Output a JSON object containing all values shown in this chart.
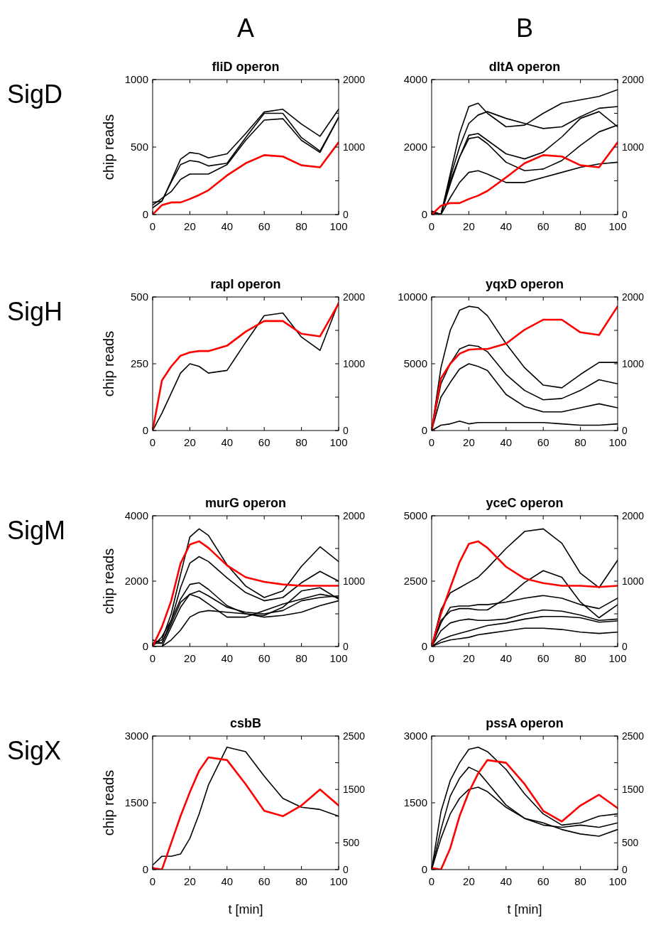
{
  "chart_data": [
    {
      "type": "line",
      "title": "fliD operon",
      "ylabel": "chip reads",
      "annotations": [
        "SigD",
        "A"
      ],
      "x": [
        0,
        5,
        10,
        15,
        20,
        25,
        30,
        40,
        50,
        60,
        70,
        80,
        90,
        100
      ],
      "xlim": [
        0,
        100
      ],
      "xticks": [
        0,
        20,
        40,
        60,
        80,
        100
      ],
      "ylim": [
        0,
        1000
      ],
      "yticks": [
        0,
        500,
        1000
      ],
      "y2lim": [
        0,
        2000
      ],
      "y2ticks": [
        0,
        {
          "value": 500,
          "label": null
        },
        1000,
        {
          "value": 1500,
          "label": null
        },
        2000
      ],
      "series": [
        {
          "color": "#000000",
          "values": [
            90,
            100,
            250,
            410,
            460,
            450,
            420,
            450,
            600,
            760,
            780,
            670,
            580,
            780
          ]
        },
        {
          "color": "#000000",
          "values": [
            50,
            100,
            240,
            370,
            400,
            390,
            360,
            380,
            570,
            750,
            750,
            570,
            470,
            720
          ]
        },
        {
          "color": "#000000",
          "values": [
            70,
            120,
            170,
            260,
            300,
            300,
            300,
            370,
            550,
            700,
            710,
            550,
            460,
            720
          ]
        },
        {
          "color": "#ff0000",
          "axis": "y2",
          "values": [
            0,
            140,
            180,
            180,
            230,
            290,
            360,
            580,
            760,
            880,
            860,
            730,
            700,
            1070
          ]
        }
      ]
    },
    {
      "type": "line",
      "title": "dltA operon",
      "annotations": [
        "B"
      ],
      "x": [
        0,
        5,
        10,
        15,
        20,
        25,
        30,
        40,
        50,
        60,
        70,
        80,
        90,
        100
      ],
      "xlim": [
        0,
        100
      ],
      "xticks": [
        0,
        20,
        40,
        60,
        80,
        100
      ],
      "ylim": [
        0,
        4000
      ],
      "yticks": [
        0,
        2000,
        4000
      ],
      "y2lim": [
        0,
        2000
      ],
      "y2ticks": [
        0,
        {
          "value": 500,
          "label": null
        },
        1000,
        {
          "value": 1500,
          "label": null
        },
        2000
      ],
      "series": [
        {
          "color": "#000000",
          "values": [
            100,
            0,
            1200,
            2400,
            3200,
            3300,
            3000,
            2600,
            2650,
            3000,
            3300,
            3400,
            3500,
            3700
          ]
        },
        {
          "color": "#000000",
          "values": [
            50,
            0,
            1100,
            2000,
            2700,
            2950,
            3050,
            2850,
            2700,
            2550,
            2600,
            2900,
            3150,
            3200
          ]
        },
        {
          "color": "#000000",
          "values": [
            100,
            0,
            1000,
            1700,
            2350,
            2400,
            2200,
            1800,
            1650,
            1850,
            2300,
            2850,
            3050,
            2600
          ]
        },
        {
          "color": "#000000",
          "values": [
            100,
            0,
            900,
            1700,
            2250,
            2300,
            2100,
            1550,
            1300,
            1350,
            1600,
            2050,
            2450,
            2650
          ]
        },
        {
          "color": "#000000",
          "values": [
            100,
            0,
            500,
            950,
            1250,
            1300,
            1200,
            950,
            950,
            1100,
            1250,
            1400,
            1500,
            1550
          ]
        },
        {
          "color": "#ff0000",
          "axis": "y2",
          "values": [
            0,
            130,
            170,
            170,
            230,
            280,
            350,
            550,
            760,
            880,
            860,
            730,
            700,
            1070
          ]
        }
      ]
    },
    {
      "type": "line",
      "title": "rapI operon",
      "ylabel": "chip reads",
      "annotations": [
        "SigH"
      ],
      "x": [
        0,
        5,
        10,
        15,
        20,
        25,
        30,
        40,
        50,
        60,
        70,
        80,
        90,
        100
      ],
      "xlim": [
        0,
        100
      ],
      "xticks": [
        0,
        20,
        40,
        60,
        80,
        100
      ],
      "ylim": [
        0,
        500
      ],
      "yticks": [
        0,
        250,
        500
      ],
      "y2lim": [
        0,
        2000
      ],
      "y2ticks": [
        0,
        {
          "value": 500,
          "label": null
        },
        1000,
        {
          "value": 1500,
          "label": null
        },
        2000
      ],
      "series": [
        {
          "color": "#000000",
          "values": [
            0,
            65,
            140,
            215,
            250,
            240,
            215,
            225,
            330,
            430,
            440,
            350,
            300,
            480
          ]
        },
        {
          "color": "#ff0000",
          "axis": "y2",
          "values": [
            0,
            750,
            960,
            1120,
            1170,
            1190,
            1190,
            1270,
            1480,
            1640,
            1640,
            1450,
            1410,
            1900
          ]
        }
      ]
    },
    {
      "type": "line",
      "title": "yqxD operon",
      "x": [
        0,
        5,
        10,
        15,
        20,
        25,
        30,
        40,
        50,
        60,
        70,
        80,
        90,
        100
      ],
      "xlim": [
        0,
        100
      ],
      "xticks": [
        0,
        20,
        40,
        60,
        80,
        100
      ],
      "ylim": [
        0,
        10000
      ],
      "yticks": [
        0,
        5000,
        10000
      ],
      "y2lim": [
        0,
        2000
      ],
      "y2ticks": [
        0,
        {
          "value": 500,
          "label": null
        },
        1000,
        {
          "value": 1500,
          "label": null
        },
        2000
      ],
      "series": [
        {
          "color": "#000000",
          "values": [
            0,
            4700,
            7500,
            9000,
            9300,
            9200,
            8600,
            6500,
            4700,
            3400,
            3200,
            4200,
            5100,
            5100
          ]
        },
        {
          "color": "#000000",
          "values": [
            0,
            3500,
            5000,
            6100,
            6400,
            6300,
            5900,
            4200,
            3000,
            2300,
            2400,
            3000,
            3800,
            3500
          ]
        },
        {
          "color": "#000000",
          "values": [
            0,
            2500,
            3600,
            4600,
            5000,
            4800,
            4500,
            2700,
            1800,
            1400,
            1400,
            1700,
            2000,
            1700
          ]
        },
        {
          "color": "#000000",
          "values": [
            0,
            400,
            500,
            700,
            500,
            600,
            600,
            600,
            600,
            600,
            500,
            400,
            400,
            500
          ]
        },
        {
          "color": "#ff0000",
          "axis": "y2",
          "values": [
            0,
            780,
            1000,
            1150,
            1210,
            1220,
            1220,
            1300,
            1510,
            1660,
            1660,
            1470,
            1430,
            1860
          ]
        }
      ]
    },
    {
      "type": "line",
      "title": "murG operon",
      "ylabel": "chip reads",
      "annotations": [
        "SigM"
      ],
      "x": [
        0,
        5,
        10,
        15,
        20,
        25,
        30,
        40,
        50,
        60,
        70,
        80,
        90,
        100
      ],
      "xlim": [
        0,
        100
      ],
      "xticks": [
        0,
        20,
        40,
        60,
        80,
        100
      ],
      "ylim": [
        0,
        4000
      ],
      "yticks": [
        0,
        2000,
        4000
      ],
      "y2lim": [
        0,
        2000
      ],
      "y2ticks": [
        0,
        {
          "value": 500,
          "label": null
        },
        1000,
        {
          "value": 1500,
          "label": null
        },
        2000
      ],
      "series": [
        {
          "color": "#000000",
          "values": [
            100,
            200,
            1000,
            2200,
            3350,
            3600,
            3400,
            2500,
            1850,
            1500,
            1700,
            2450,
            3050,
            2600
          ]
        },
        {
          "color": "#000000",
          "values": [
            100,
            100,
            800,
            1800,
            2550,
            2750,
            2600,
            2100,
            1650,
            1400,
            1500,
            1950,
            2300,
            2000
          ]
        },
        {
          "color": "#000000",
          "values": [
            0,
            300,
            800,
            1450,
            1900,
            1950,
            1750,
            1250,
            1000,
            950,
            1200,
            1700,
            1800,
            1450
          ]
        },
        {
          "color": "#000000",
          "values": [
            200,
            100,
            700,
            1350,
            1600,
            1700,
            1550,
            1200,
            1050,
            1000,
            1100,
            1400,
            1500,
            1550
          ]
        },
        {
          "color": "#000000",
          "values": [
            0,
            0,
            600,
            1200,
            1600,
            1500,
            1300,
            900,
            900,
            1100,
            1300,
            1450,
            1600,
            1500
          ]
        },
        {
          "color": "#000000",
          "values": [
            0,
            0,
            200,
            500,
            900,
            1050,
            1100,
            1050,
            1000,
            900,
            950,
            1050,
            1250,
            1400
          ]
        },
        {
          "color": "#ff0000",
          "axis": "y2",
          "values": [
            0,
            300,
            700,
            1270,
            1560,
            1610,
            1510,
            1240,
            1060,
            990,
            950,
            930,
            930,
            930
          ]
        }
      ]
    },
    {
      "type": "line",
      "title": "yceC operon",
      "x": [
        0,
        5,
        10,
        15,
        20,
        25,
        30,
        40,
        50,
        60,
        70,
        80,
        90,
        100
      ],
      "xlim": [
        0,
        100
      ],
      "xticks": [
        0,
        20,
        40,
        60,
        80,
        100
      ],
      "ylim": [
        0,
        5000
      ],
      "yticks": [
        0,
        2500,
        5000
      ],
      "y2lim": [
        0,
        2000
      ],
      "y2ticks": [
        0,
        {
          "value": 500,
          "label": null
        },
        1000,
        {
          "value": 1500,
          "label": null
        },
        2000
      ],
      "series": [
        {
          "color": "#000000",
          "values": [
            0,
            1400,
            2050,
            2250,
            2450,
            2650,
            3000,
            3750,
            4400,
            4500,
            3950,
            2800,
            2250,
            3300
          ]
        },
        {
          "color": "#000000",
          "values": [
            0,
            1000,
            1350,
            1450,
            1450,
            1400,
            1400,
            1850,
            2450,
            2900,
            2650,
            1700,
            1100,
            1600
          ]
        },
        {
          "color": "#000000",
          "values": [
            0,
            900,
            1500,
            1550,
            1550,
            1600,
            1600,
            1700,
            1850,
            1950,
            1850,
            1600,
            1450,
            1850
          ]
        },
        {
          "color": "#000000",
          "values": [
            0,
            600,
            900,
            1000,
            1050,
            1000,
            1000,
            1050,
            1250,
            1400,
            1350,
            1200,
            1000,
            1050
          ]
        },
        {
          "color": "#000000",
          "values": [
            0,
            250,
            400,
            500,
            600,
            700,
            800,
            900,
            1050,
            1150,
            1150,
            1100,
            930,
            980
          ]
        },
        {
          "color": "#000000",
          "values": [
            0,
            150,
            250,
            300,
            350,
            450,
            500,
            600,
            700,
            700,
            650,
            550,
            500,
            550
          ]
        },
        {
          "color": "#ff0000",
          "axis": "y2",
          "values": [
            0,
            500,
            900,
            1290,
            1570,
            1610,
            1510,
            1220,
            1040,
            970,
            930,
            930,
            910,
            930
          ]
        }
      ]
    },
    {
      "type": "line",
      "title": "csbB",
      "ylabel": "chip reads",
      "xlabel": "t [min]",
      "annotations": [
        "SigX"
      ],
      "x": [
        0,
        5,
        10,
        15,
        20,
        25,
        30,
        40,
        50,
        60,
        70,
        80,
        90,
        100
      ],
      "xlim": [
        0,
        100
      ],
      "xticks": [
        0,
        20,
        40,
        60,
        80,
        100
      ],
      "ylim": [
        0,
        3000
      ],
      "yticks": [
        0,
        1500,
        3000
      ],
      "y2lim": [
        0,
        2500
      ],
      "y2ticks": [
        0,
        500,
        {
          "value": 1000,
          "label": null
        },
        1500,
        {
          "value": 2000,
          "label": null
        },
        2500
      ],
      "series": [
        {
          "color": "#000000",
          "values": [
            100,
            300,
            300,
            350,
            700,
            1250,
            1900,
            2750,
            2650,
            2100,
            1600,
            1400,
            1350,
            1200
          ]
        },
        {
          "color": "#ff0000",
          "axis": "y2",
          "values": [
            30,
            0,
            500,
            1000,
            1450,
            1850,
            2100,
            2050,
            1600,
            1100,
            1000,
            1200,
            1500,
            1200
          ]
        }
      ]
    },
    {
      "type": "line",
      "title": "pssA operon",
      "xlabel": "t [min]",
      "x": [
        0,
        5,
        10,
        15,
        20,
        25,
        30,
        40,
        50,
        60,
        70,
        80,
        90,
        100
      ],
      "xlim": [
        0,
        100
      ],
      "xticks": [
        0,
        20,
        40,
        60,
        80,
        100
      ],
      "ylim": [
        0,
        3000
      ],
      "yticks": [
        0,
        1500,
        3000
      ],
      "y2lim": [
        0,
        2500
      ],
      "y2ticks": [
        0,
        500,
        {
          "value": 1000,
          "label": null
        },
        1500,
        {
          "value": 2000,
          "label": null
        },
        2500
      ],
      "series": [
        {
          "color": "#000000",
          "values": [
            0,
            1300,
            2000,
            2400,
            2700,
            2750,
            2650,
            2250,
            1700,
            1250,
            1000,
            1050,
            1200,
            1250
          ]
        },
        {
          "color": "#000000",
          "values": [
            0,
            900,
            1650,
            2050,
            2300,
            2200,
            1950,
            1450,
            1150,
            1000,
            950,
            1000,
            950,
            1050
          ]
        },
        {
          "color": "#000000",
          "values": [
            0,
            700,
            1250,
            1600,
            1800,
            1850,
            1750,
            1400,
            1150,
            1050,
            900,
            800,
            750,
            900
          ]
        },
        {
          "color": "#ff0000",
          "axis": "y2",
          "values": [
            30,
            0,
            400,
            1000,
            1450,
            1800,
            2050,
            2000,
            1600,
            1100,
            900,
            1200,
            1400,
            1150
          ]
        }
      ]
    }
  ]
}
